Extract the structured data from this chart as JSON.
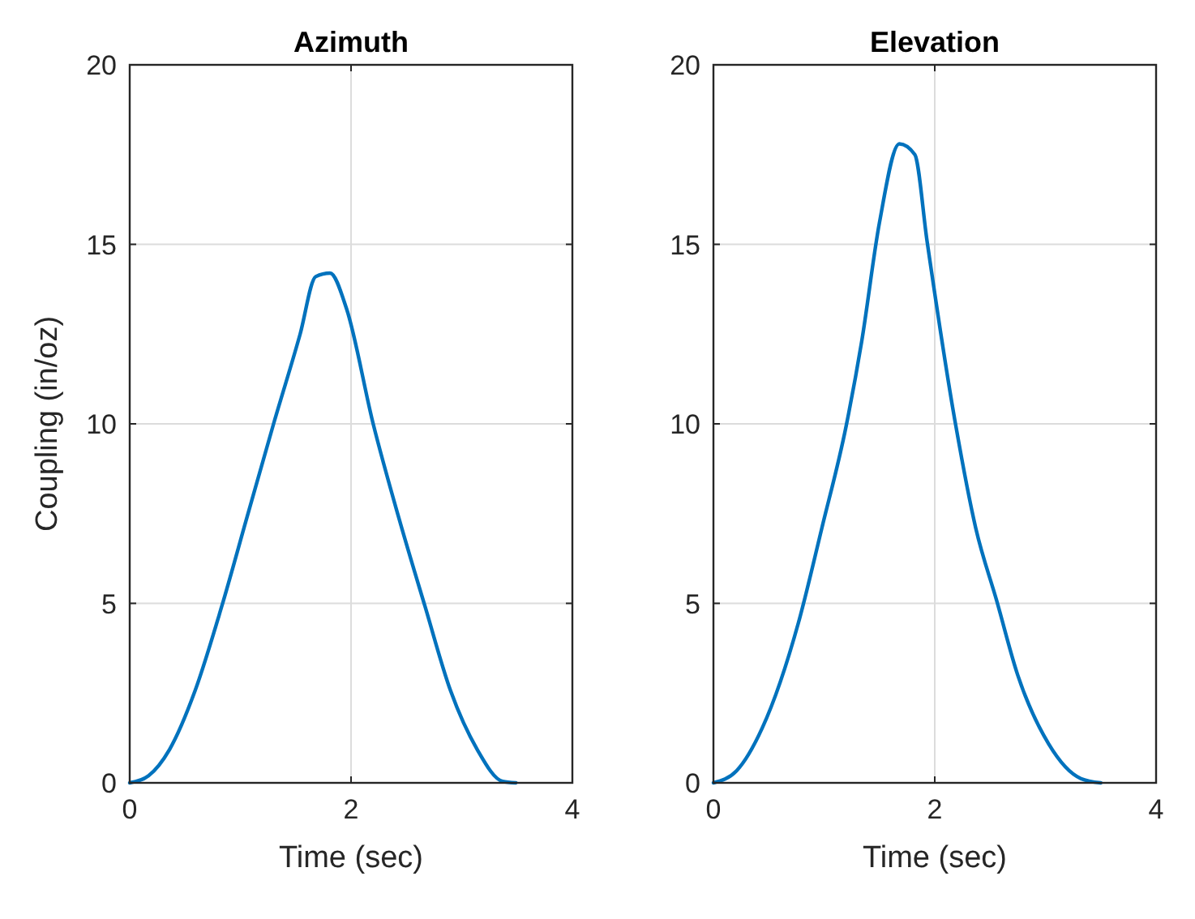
{
  "chart_data": [
    {
      "type": "line",
      "title": "Azimuth",
      "xlabel": "Time (sec)",
      "ylabel": "Coupling (in/oz)",
      "xlim": [
        0,
        4
      ],
      "ylim": [
        0,
        20
      ],
      "xticks": [
        0,
        2,
        4
      ],
      "yticks": [
        0,
        5,
        10,
        15,
        20
      ],
      "grid": true,
      "marker": "none",
      "line_style": "solid",
      "series": [
        {
          "color": "#0072bd",
          "x": [
            0,
            0.17,
            0.36,
            0.59,
            0.83,
            1.06,
            1.3,
            1.54,
            1.68,
            1.81,
            1.96,
            2.2,
            2.43,
            2.67,
            2.9,
            3.14,
            3.37,
            3.49
          ],
          "values": [
            0,
            0.2,
            0.93,
            2.56,
            4.9,
            7.4,
            10,
            12.5,
            14.1,
            14.2,
            13.2,
            10,
            7.4,
            4.9,
            2.56,
            0.93,
            0.04,
            0
          ]
        }
      ]
    },
    {
      "type": "line",
      "title": "Elevation",
      "xlabel": "Time (sec)",
      "xlim": [
        0,
        4
      ],
      "ylim": [
        0,
        20
      ],
      "xticks": [
        0,
        2,
        4
      ],
      "yticks": [
        0,
        5,
        10,
        15,
        20
      ],
      "grid": true,
      "marker": "none",
      "line_style": "solid",
      "series": [
        {
          "color": "#0072bd",
          "x": [
            0,
            0.21,
            0.44,
            0.77,
            0.98,
            1.2,
            1.34,
            1.5,
            1.68,
            1.82,
            1.93,
            2.19,
            2.37,
            2.56,
            2.75,
            3.03,
            3.32,
            3.5
          ],
          "values": [
            0,
            0.34,
            1.52,
            4.48,
            7.1,
            9.95,
            12.3,
            15.6,
            17.8,
            17.5,
            15.1,
            9.95,
            7.1,
            5.07,
            3,
            1.08,
            0.12,
            0
          ]
        }
      ]
    }
  ]
}
